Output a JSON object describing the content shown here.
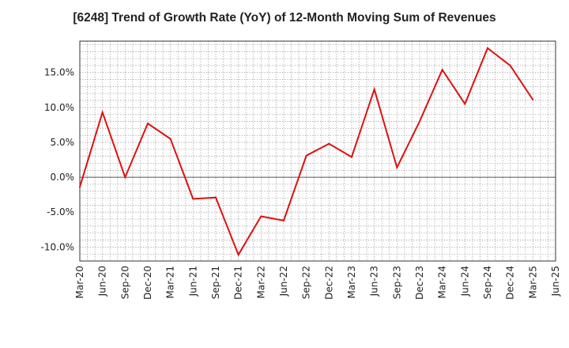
{
  "chart_data": {
    "type": "line",
    "title": "[6248]  Trend of Growth Rate (YoY) of 12-Month Moving Sum of Revenues",
    "xlabel": "",
    "ylabel": "",
    "x_ticks": [
      "Mar-20",
      "Jun-20",
      "Sep-20",
      "Dec-20",
      "Mar-21",
      "Jun-21",
      "Sep-21",
      "Dec-21",
      "Mar-22",
      "Jun-22",
      "Sep-22",
      "Dec-22",
      "Mar-23",
      "Jun-23",
      "Sep-23",
      "Dec-23",
      "Mar-24",
      "Jun-24",
      "Sep-24",
      "Dec-24",
      "Mar-25",
      "Jun-25"
    ],
    "y_ticks": [
      "15.0%",
      "10.0%",
      "5.0%",
      "0.0%",
      "-5.0%",
      "-10.0%"
    ],
    "y_tick_values": [
      15,
      10,
      5,
      0,
      -5,
      -10
    ],
    "ylim": [
      -12,
      19.5
    ],
    "grid": true,
    "series": [
      {
        "color": "#dd1111",
        "x": [
          "Mar-20",
          "Jun-20",
          "Sep-20",
          "Dec-20",
          "Mar-21",
          "Jun-21",
          "Sep-21",
          "Dec-21",
          "Mar-22",
          "Jun-22",
          "Sep-22",
          "Dec-22",
          "Mar-23",
          "Jun-23",
          "Sep-23",
          "Dec-23",
          "Mar-24",
          "Jun-24",
          "Sep-24",
          "Dec-24",
          "Mar-25"
        ],
        "values": [
          -1.4,
          9.3,
          0.0,
          7.7,
          5.5,
          -3.1,
          -2.9,
          -11.1,
          -5.6,
          -6.2,
          3.1,
          4.8,
          2.9,
          12.6,
          1.4,
          8.0,
          15.4,
          10.5,
          18.5,
          16.0,
          11.1
        ]
      }
    ]
  }
}
